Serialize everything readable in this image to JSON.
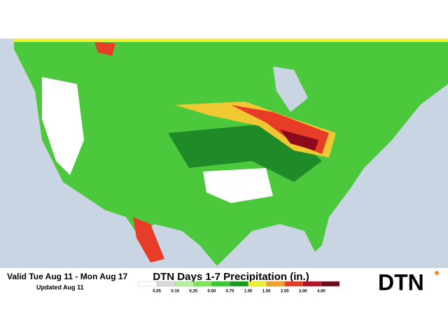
{
  "header": {
    "valid": "Valid Tue Aug 11 - Mon Aug 17",
    "updated": "Updated Aug 11",
    "title": "DTN Days 1-7 Precipitation (in.)",
    "logo": "DTN"
  },
  "legend": {
    "labels": [
      "0.05",
      "0.10",
      "0.25",
      "0.50",
      "0.75",
      "1.00",
      "1.50",
      "2.00",
      "3.00",
      "4.00"
    ],
    "colors": [
      "#ffffff",
      "#d8d8d8",
      "#b4f0a0",
      "#7de35a",
      "#3cc832",
      "#1e9a1e",
      "#f0f032",
      "#f0a028",
      "#e63c28",
      "#b41428",
      "#6e0a1e"
    ]
  }
}
